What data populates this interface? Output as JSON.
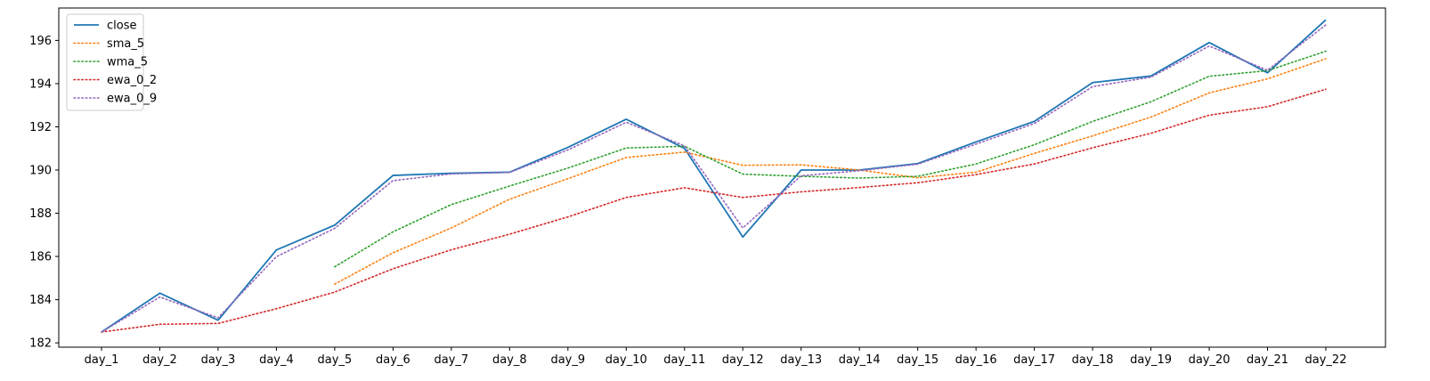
{
  "chart_data": {
    "type": "line",
    "title": "",
    "xlabel": "",
    "ylabel": "",
    "categories": [
      "day_1",
      "day_2",
      "day_3",
      "day_4",
      "day_5",
      "day_6",
      "day_7",
      "day_8",
      "day_9",
      "day_10",
      "day_11",
      "day_12",
      "day_13",
      "day_14",
      "day_15",
      "day_16",
      "day_17",
      "day_18",
      "day_19",
      "day_20",
      "day_21",
      "day_22"
    ],
    "ylim": [
      181.8,
      197.5
    ],
    "yticks": [
      182,
      184,
      186,
      188,
      190,
      192,
      194,
      196
    ],
    "grid": false,
    "legend_position": "top-left",
    "series": [
      {
        "name": "close",
        "style": "solid",
        "color": "#1f77b4",
        "values": [
          182.5,
          184.3,
          183.05,
          186.3,
          187.45,
          189.75,
          189.85,
          189.9,
          191.05,
          192.35,
          191.0,
          186.9,
          190.0,
          190.0,
          190.3,
          191.3,
          192.25,
          194.05,
          194.35,
          195.9,
          194.5,
          196.95
        ]
      },
      {
        "name": "sma_5",
        "style": "dotted",
        "color": "#ff7f0e",
        "values": [
          null,
          null,
          null,
          null,
          184.72,
          186.17,
          187.32,
          188.65,
          189.6,
          190.58,
          190.83,
          190.22,
          190.24,
          190.0,
          189.64,
          189.9,
          190.77,
          191.58,
          192.45,
          193.57,
          194.22,
          195.15
        ]
      },
      {
        "name": "wma_5",
        "style": "dotted",
        "color": "#2ca02c",
        "values": [
          null,
          null,
          null,
          null,
          185.52,
          187.14,
          188.4,
          189.26,
          190.09,
          191.02,
          191.1,
          189.81,
          189.71,
          189.63,
          189.71,
          190.28,
          191.17,
          192.25,
          193.16,
          194.34,
          194.6,
          195.5
        ]
      },
      {
        "name": "ewa_0_2",
        "style": "dotted",
        "color": "#d62728",
        "values": [
          182.5,
          182.86,
          182.9,
          183.58,
          184.35,
          185.43,
          186.31,
          187.03,
          187.83,
          188.73,
          189.18,
          188.73,
          188.99,
          189.19,
          189.41,
          189.79,
          190.28,
          191.03,
          191.7,
          192.54,
          192.93,
          193.74
        ]
      },
      {
        "name": "ewa_0_9",
        "style": "dotted",
        "color": "#9467bd",
        "values": [
          182.5,
          184.12,
          183.16,
          185.99,
          187.3,
          189.51,
          189.82,
          189.89,
          190.93,
          192.21,
          191.12,
          187.32,
          189.73,
          189.97,
          190.27,
          191.2,
          192.15,
          193.86,
          194.3,
          195.74,
          194.62,
          196.72
        ]
      }
    ]
  }
}
